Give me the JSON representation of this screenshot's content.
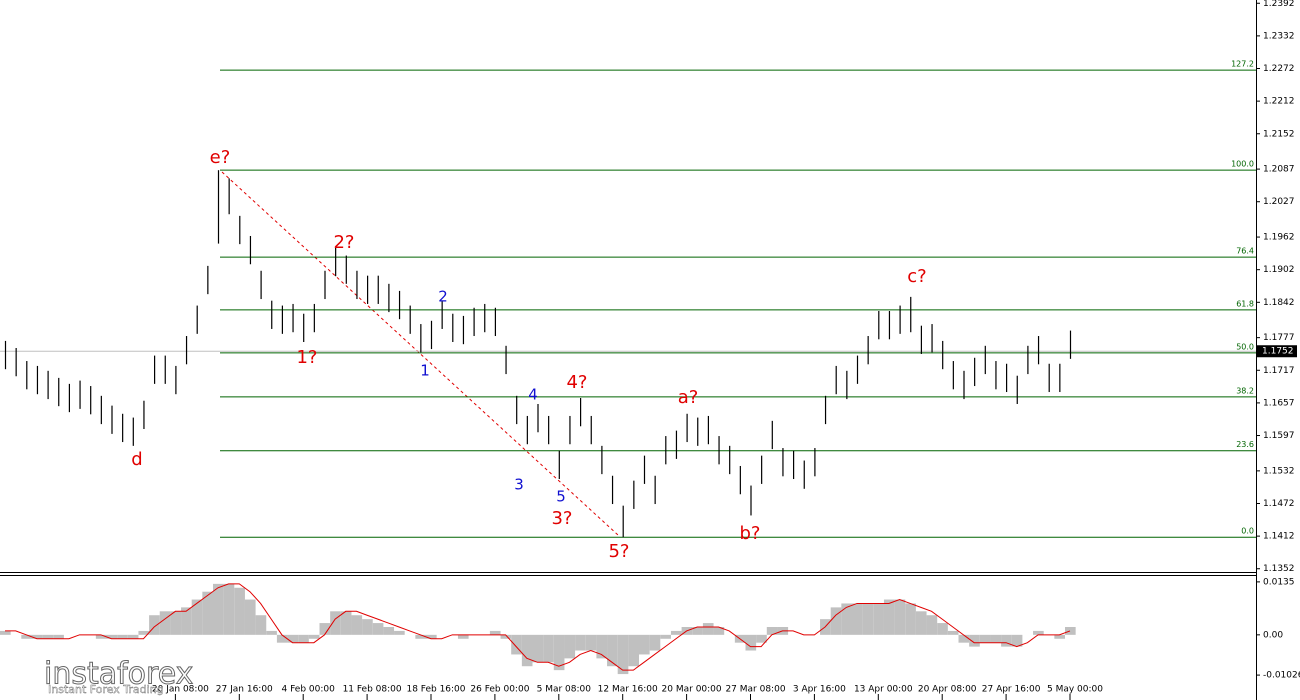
{
  "chart_data": [
    {
      "type": "ohlc",
      "color": "#000000",
      "categories": [
        null,
        null,
        null,
        null,
        null,
        null,
        null,
        null,
        null,
        null,
        null,
        null,
        null,
        null,
        null,
        null,
        "20 Jan 08:00",
        null,
        null,
        null,
        null,
        null,
        "27 Jan 16:00",
        null,
        null,
        null,
        null,
        null,
        "4 Feb 00:00",
        null,
        null,
        null,
        null,
        null,
        "11 Feb 08:00",
        null,
        null,
        null,
        null,
        null,
        "18 Feb 16:00",
        null,
        null,
        null,
        null,
        null,
        "26 Feb 00:00",
        null,
        null,
        null,
        null,
        null,
        "5 Mar 08:00",
        null,
        null,
        null,
        null,
        null,
        "12 Mar 16:00",
        null,
        null,
        null,
        null,
        null,
        "20 Mar 00:00",
        null,
        null,
        null,
        null,
        null,
        "27 Mar 08:00",
        null,
        null,
        null,
        null,
        null,
        "3 Apr 16:00",
        null,
        null,
        null,
        null,
        null,
        "13 Apr 00:00",
        null,
        null,
        null,
        null,
        null,
        "20 Apr 08:00",
        null,
        null,
        null,
        null,
        null,
        "27 Apr 16:00",
        null,
        null,
        null,
        null,
        null,
        "5 May 00:00"
      ],
      "high": [
        1.1771,
        1.1758,
        1.1734,
        1.1725,
        1.1716,
        1.1703,
        1.1692,
        1.1698,
        1.1688,
        1.167,
        1.1652,
        1.1637,
        1.163,
        1.1661,
        1.1744,
        1.1744,
        1.1725,
        1.178,
        1.1836,
        1.1909,
        1.2085,
        1.207,
        1.2001,
        1.1964,
        1.19,
        1.1845,
        1.1836,
        1.1839,
        1.1821,
        1.1839,
        1.19,
        1.1942,
        1.1928,
        1.19,
        1.1891,
        1.1891,
        1.1876,
        1.1863,
        1.1836,
        1.1802,
        1.1808,
        1.1845,
        1.1821,
        1.1817,
        1.1832,
        1.1839,
        1.1832,
        1.1762,
        1.167,
        1.1633,
        1.1655,
        1.1633,
        1.1569,
        1.1633,
        1.1666,
        1.1633,
        1.1578,
        1.1523,
        1.1468,
        1.1514,
        1.156,
        1.1523,
        1.1596,
        1.1606,
        1.1637,
        1.163,
        1.1633,
        1.1596,
        1.1578,
        1.1541,
        1.1505,
        1.156,
        1.1624,
        1.1574,
        1.1569,
        1.1551,
        1.1574,
        1.167,
        1.1725,
        1.1716,
        1.1744,
        1.178,
        1.1826,
        1.1826,
        1.1836,
        1.1852,
        1.1799,
        1.1802,
        1.1771,
        1.1734,
        1.1716,
        1.174,
        1.1762,
        1.1734,
        1.1729,
        1.1707,
        1.1762,
        1.178,
        1.1729,
        1.1729,
        1.179
      ],
      "low": [
        1.1719,
        1.1706,
        1.1682,
        1.1673,
        1.1664,
        1.1651,
        1.164,
        1.1646,
        1.1636,
        1.1618,
        1.16,
        1.1585,
        1.1578,
        1.1609,
        1.1692,
        1.1692,
        1.1673,
        1.1728,
        1.1784,
        1.1857,
        1.195,
        1.2004,
        1.1949,
        1.1912,
        1.1848,
        1.1793,
        1.1784,
        1.1787,
        1.1769,
        1.1787,
        1.1848,
        1.189,
        1.1876,
        1.1848,
        1.1839,
        1.1839,
        1.1824,
        1.1811,
        1.1784,
        1.175,
        1.1756,
        1.1793,
        1.1769,
        1.1765,
        1.178,
        1.1787,
        1.178,
        1.171,
        1.1618,
        1.1581,
        1.1603,
        1.1581,
        1.1517,
        1.1581,
        1.1614,
        1.1581,
        1.1526,
        1.1471,
        1.141,
        1.1462,
        1.1508,
        1.1471,
        1.1544,
        1.1554,
        1.1585,
        1.1578,
        1.1581,
        1.1544,
        1.1526,
        1.1489,
        1.145,
        1.1508,
        1.1572,
        1.1522,
        1.1517,
        1.1499,
        1.1522,
        1.1618,
        1.1673,
        1.1664,
        1.1692,
        1.1728,
        1.1774,
        1.1774,
        1.1784,
        1.1787,
        1.1747,
        1.175,
        1.1719,
        1.1682,
        1.1664,
        1.1688,
        1.171,
        1.1682,
        1.1677,
        1.1655,
        1.171,
        1.1728,
        1.1677,
        1.1677,
        1.1738
      ],
      "ylim": [
        1.1346,
        1.2398
      ],
      "yticks": [
        1.2392,
        1.2332,
        1.2272,
        1.2212,
        1.2152,
        1.2087,
        1.2027,
        1.1962,
        1.1902,
        1.1842,
        1.1777,
        1.1717,
        1.1657,
        1.1597,
        1.1532,
        1.1472,
        1.1412,
        1.1352
      ],
      "current_price": {
        "value": 1.1752,
        "label": "1.1752"
      },
      "fib_color": "#006400",
      "fib_levels": [
        {
          "label": "127.2",
          "price": 1.2269
        },
        {
          "label": "100.0",
          "price": 1.2085
        },
        {
          "label": "76.4",
          "price": 1.1925
        },
        {
          "label": "61.8",
          "price": 1.1828
        },
        {
          "label": "50.0",
          "price": 1.1749
        },
        {
          "label": "38.2",
          "price": 1.1668
        },
        {
          "label": "23.6",
          "price": 1.1569
        },
        {
          "label": "0.0",
          "price": 1.141
        }
      ],
      "annotations": [
        {
          "text": "e?",
          "color": "#e00000"
        },
        {
          "text": "d",
          "color": "#e00000"
        },
        {
          "text": "1?",
          "color": "#e00000"
        },
        {
          "text": "2?",
          "color": "#e00000"
        },
        {
          "text": "1",
          "color": "#1010d0"
        },
        {
          "text": "2",
          "color": "#1010d0"
        },
        {
          "text": "3",
          "color": "#1010d0"
        },
        {
          "text": "4",
          "color": "#1010d0"
        },
        {
          "text": "5",
          "color": "#1010d0"
        },
        {
          "text": "3?",
          "color": "#e00000"
        },
        {
          "text": "4?",
          "color": "#e00000"
        },
        {
          "text": "5?",
          "color": "#e00000"
        },
        {
          "text": "a?",
          "color": "#e00000"
        },
        {
          "text": "b?",
          "color": "#e00000"
        },
        {
          "text": "c?",
          "color": "#e00000"
        }
      ],
      "watermark": {
        "brand": "instaforex",
        "slogan": "Instant Forex Trading"
      }
    },
    {
      "type": "histogram",
      "color": "#c0c0c0",
      "signal_color": "#e00000",
      "values": [
        0.001,
        0,
        -0.001,
        -0.001,
        -0.001,
        -0.001,
        0,
        0,
        0,
        -0.001,
        -0.001,
        -0.001,
        -0.001,
        0.001,
        0.005,
        0.006,
        0.006,
        0.007,
        0.009,
        0.011,
        0.013,
        0.013,
        0.012,
        0.009,
        0.005,
        0.001,
        -0.002,
        -0.002,
        -0.002,
        -0.001,
        0.003,
        0.006,
        0.006,
        0.005,
        0.004,
        0.003,
        0.002,
        0.001,
        0,
        -0.001,
        -0.001,
        0,
        0,
        -0.001,
        0,
        0,
        0.001,
        -0.001,
        -0.005,
        -0.008,
        -0.007,
        -0.007,
        -0.009,
        -0.006,
        -0.004,
        -0.004,
        -0.006,
        -0.008,
        -0.01,
        -0.008,
        -0.005,
        -0.004,
        -0.001,
        0.001,
        0.002,
        0.002,
        0.003,
        0.002,
        0,
        -0.002,
        -0.004,
        -0.002,
        0.002,
        0.002,
        0,
        0,
        0,
        0.004,
        0.007,
        0.008,
        0.008,
        0.008,
        0.008,
        0.009,
        0.009,
        0.008,
        0.006,
        0.005,
        0.003,
        0.001,
        -0.002,
        -0.003,
        -0.002,
        -0.002,
        -0.003,
        -0.003,
        0,
        0.001,
        0,
        -0.001,
        0.002
      ],
      "signal": [
        0.001,
        0.001,
        0,
        -0.001,
        -0.001,
        -0.001,
        -0.001,
        0,
        0,
        0,
        -0.001,
        -0.001,
        -0.001,
        -0.001,
        0.002,
        0.004,
        0.006,
        0.006,
        0.008,
        0.01,
        0.012,
        0.013,
        0.013,
        0.011,
        0.008,
        0.004,
        0,
        -0.002,
        -0.002,
        -0.002,
        0,
        0.004,
        0.006,
        0.006,
        0.005,
        0.004,
        0.003,
        0.002,
        0.001,
        0,
        -0.001,
        -0.001,
        0,
        0,
        0,
        0,
        0,
        0,
        -0.003,
        -0.006,
        -0.007,
        -0.007,
        -0.008,
        -0.007,
        -0.005,
        -0.004,
        -0.005,
        -0.007,
        -0.009,
        -0.009,
        -0.007,
        -0.005,
        -0.003,
        -0.001,
        0.001,
        0.002,
        0.002,
        0.002,
        0.001,
        -0.001,
        -0.003,
        -0.003,
        0,
        0.001,
        0.001,
        0,
        0,
        0.002,
        0.005,
        0.007,
        0.008,
        0.008,
        0.008,
        0.008,
        0.009,
        0.008,
        0.007,
        0.006,
        0.004,
        0.002,
        0,
        -0.002,
        -0.002,
        -0.002,
        -0.002,
        -0.003,
        -0.002,
        0,
        0,
        0,
        0.001
      ],
      "ylim": [
        -0.0161,
        0.015
      ],
      "yticks": [
        0.0135,
        {
          "value": 0,
          "label": "0.00"
        },
        -0.01026
      ]
    }
  ]
}
